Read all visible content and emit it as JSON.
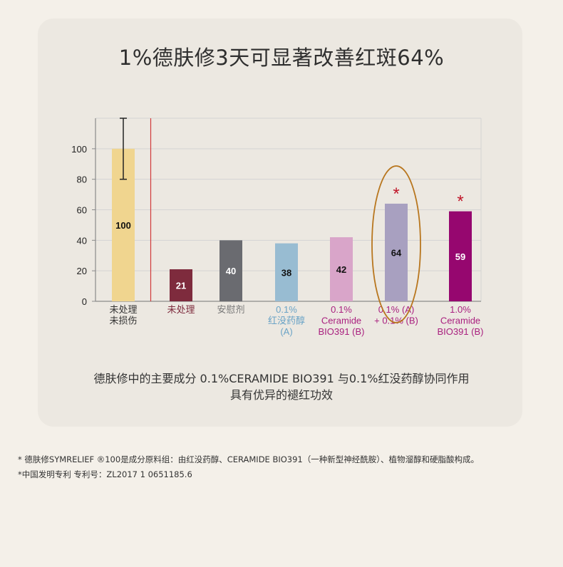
{
  "title": "1%德肤修3天可显著改善红斑64%",
  "caption": {
    "line1": "德肤修中的主要成分 0.1%CERAMIDE BIO391 与0.1%红没药醇协同作用",
    "line2": "具有优异的褪红功效"
  },
  "footnotes": {
    "line1": "* 德肤修SYMRELIEF ®100是成分原料组：由红没药醇、CERAMIDE BIO391（一种新型神经酰胺）、植物溜醇和硬脂酸构成。",
    "line2": "*中国发明专利  专利号：ZL2017 1 0651185.6"
  },
  "chart_data": {
    "type": "bar",
    "ylim": [
      0,
      120
    ],
    "yticks": [
      0,
      20,
      40,
      60,
      80,
      100
    ],
    "categories": [
      [
        "未处理",
        "未损伤"
      ],
      [
        "未处理"
      ],
      [
        "安慰剂"
      ],
      [
        "0.1%",
        "红没药醇",
        "(A)"
      ],
      [
        "0.1%",
        "Ceramide",
        "BIO391 (B)"
      ],
      [
        "0.1% (A)",
        "+ 0.1% (B)"
      ],
      [
        "1.0%",
        "Ceramide",
        "BIO391 (B)"
      ]
    ],
    "values": [
      100,
      21,
      40,
      38,
      42,
      64,
      59
    ],
    "value_labels": [
      "100",
      "21",
      "40",
      "38",
      "42",
      "64",
      "59"
    ],
    "bar_colors": [
      "#f0d58f",
      "#7e2b3d",
      "#6a6b70",
      "#98bcd2",
      "#d9a5c9",
      "#a8a0c0",
      "#96076f"
    ],
    "label_colors": [
      "#333333",
      "#7e2b3d",
      "#777777",
      "#6aa3c6",
      "#a9207f",
      "#a9207f",
      "#a9207f"
    ],
    "value_label_colors": [
      "#111111",
      "#ffffff",
      "#ffffff",
      "#111111",
      "#111111",
      "#111111",
      "#ffffff"
    ],
    "error_bar": {
      "index": 0,
      "low": 80,
      "high": 120
    },
    "significance": [
      {
        "index": 5,
        "mark": "*"
      },
      {
        "index": 6,
        "mark": "*"
      }
    ],
    "highlight_index": 5,
    "separator_after_index": 0,
    "colors": {
      "axis": "#8a8a8a",
      "grid": "#d4d4d4",
      "separator": "#d13a3a",
      "star": "#c0172a",
      "highlight": "#b8761e"
    }
  }
}
